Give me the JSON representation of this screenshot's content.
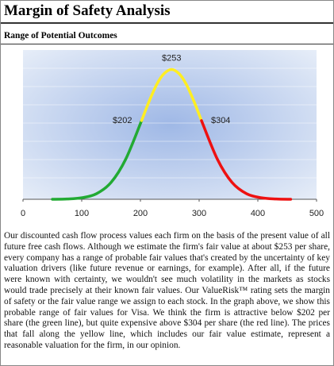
{
  "header": {
    "title": "Margin of Safety Analysis"
  },
  "section": {
    "title": "Range of Potential Outcomes"
  },
  "chart_data": {
    "type": "line",
    "xlim": [
      0,
      500
    ],
    "xticks": [
      0,
      100,
      200,
      300,
      400,
      500
    ],
    "ylim": [
      0,
      1
    ],
    "annotations": [
      {
        "text": "$253",
        "x": 253
      },
      {
        "text": "$202",
        "x": 202
      },
      {
        "text": "$304",
        "x": 304
      }
    ],
    "series": [
      {
        "color": "#22aa33",
        "x": [
          50,
          75,
          100,
          125,
          150,
          175,
          202
        ],
        "values": [
          0.0,
          0.002,
          0.01,
          0.037,
          0.113,
          0.269,
          0.527
        ]
      },
      {
        "color": "#ffee22",
        "x": [
          202,
          215,
          228,
          240,
          253,
          266,
          278,
          291,
          304
        ],
        "values": [
          0.527,
          0.658,
          0.771,
          0.841,
          0.87,
          0.841,
          0.771,
          0.658,
          0.527
        ]
      },
      {
        "color": "#ee1111",
        "x": [
          304,
          331,
          356,
          381,
          406,
          431,
          456
        ],
        "values": [
          0.527,
          0.269,
          0.113,
          0.037,
          0.01,
          0.002,
          0.0
        ]
      }
    ]
  },
  "body": {
    "text": "Our discounted cash flow process values each firm on the basis of the present value of all future free cash flows. Although we estimate the firm's fair value at about $253 per share, every company has a range of probable fair values that's created by the uncertainty of key valuation drivers (like future revenue or earnings, for example). After all, if the future were known with certainty, we wouldn't see much volatility in the markets as stocks would trade precisely at their known fair values. Our ValueRisk™ rating sets the margin of safety or the fair value range we assign to each stock. In the graph above, we show this probable range of fair values for Visa. We think the firm is attractive below $202 per share (the green line), but quite expensive above $304 per share (the red line). The prices that fall along the yellow line, which includes our fair value estimate, represent a reasonable valuation for the firm, in our opinion."
  }
}
